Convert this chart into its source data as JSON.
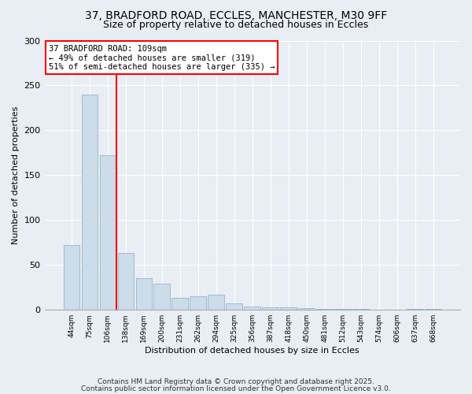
{
  "title_line1": "37, BRADFORD ROAD, ECCLES, MANCHESTER, M30 9FF",
  "title_line2": "Size of property relative to detached houses in Eccles",
  "categories": [
    "44sqm",
    "75sqm",
    "106sqm",
    "138sqm",
    "169sqm",
    "200sqm",
    "231sqm",
    "262sqm",
    "294sqm",
    "325sqm",
    "356sqm",
    "387sqm",
    "418sqm",
    "450sqm",
    "481sqm",
    "512sqm",
    "543sqm",
    "574sqm",
    "606sqm",
    "637sqm",
    "668sqm"
  ],
  "values": [
    72,
    240,
    172,
    63,
    35,
    29,
    13,
    15,
    17,
    7,
    4,
    3,
    3,
    2,
    1,
    1,
    1,
    0.5,
    0.5,
    1,
    1
  ],
  "bar_color": "#ccdce8",
  "bar_edge_color": "#a0bcd0",
  "background_color": "#e8eef4",
  "red_line_index": 2,
  "ylabel": "Number of detached properties",
  "xlabel": "Distribution of detached houses by size in Eccles",
  "ylim": [
    0,
    300
  ],
  "yticks": [
    0,
    50,
    100,
    150,
    200,
    250,
    300
  ],
  "annotation_title": "37 BRADFORD ROAD: 109sqm",
  "annotation_line2": "← 49% of detached houses are smaller (319)",
  "annotation_line3": "51% of semi-detached houses are larger (335) →",
  "footer_line1": "Contains HM Land Registry data © Crown copyright and database right 2025.",
  "footer_line2": "Contains public sector information licensed under the Open Government Licence v3.0."
}
